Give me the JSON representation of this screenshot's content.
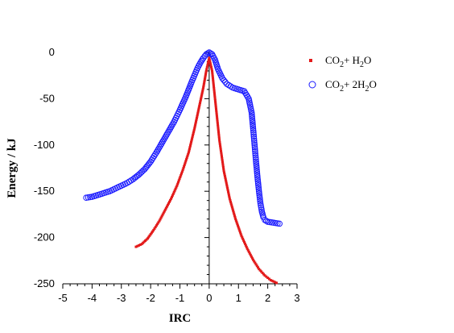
{
  "chart_data": {
    "type": "scatter",
    "xlabel": "IRC",
    "ylabel": "Energy / kJ",
    "xlim": [
      -5,
      3
    ],
    "ylim": [
      -250,
      0
    ],
    "xticks": [
      -5,
      -4,
      -3,
      -2,
      -1,
      0,
      1,
      2,
      3
    ],
    "yticks": [
      0,
      -50,
      -100,
      -150,
      -200,
      -250
    ],
    "grid": false,
    "legend_position": "top-right",
    "series": [
      {
        "name": "CO2 + H2O",
        "legend_parts": [
          "CO",
          "2",
          "+ H",
          "2",
          "O"
        ],
        "marker": "square",
        "color": "#e31a1a",
        "x": [
          -2.5,
          -2.3,
          -2.1,
          -1.9,
          -1.7,
          -1.5,
          -1.3,
          -1.1,
          -0.9,
          -0.7,
          -0.5,
          -0.35,
          -0.2,
          -0.1,
          0.0,
          0.1,
          0.2,
          0.35,
          0.5,
          0.7,
          0.9,
          1.1,
          1.3,
          1.5,
          1.7,
          1.9,
          2.1,
          2.3
        ],
        "y": [
          -210,
          -207,
          -201,
          -192,
          -182,
          -170,
          -158,
          -144,
          -127,
          -108,
          -82,
          -60,
          -38,
          -20,
          -6,
          -20,
          -50,
          -95,
          -128,
          -158,
          -180,
          -198,
          -212,
          -224,
          -234,
          -241,
          -246,
          -249
        ]
      },
      {
        "name": "CO2 + 2H2O",
        "legend_parts": [
          "CO",
          "2",
          "+ 2H",
          "2",
          "O"
        ],
        "marker": "circle-open",
        "color": "#1a1aff",
        "x": [
          -4.2,
          -4.0,
          -3.8,
          -3.6,
          -3.4,
          -3.2,
          -3.0,
          -2.8,
          -2.6,
          -2.4,
          -2.2,
          -2.0,
          -1.8,
          -1.6,
          -1.4,
          -1.2,
          -1.0,
          -0.8,
          -0.6,
          -0.4,
          -0.3,
          -0.2,
          -0.1,
          0.0,
          0.1,
          0.2,
          0.3,
          0.45,
          0.6,
          0.8,
          1.0,
          1.2,
          1.35,
          1.45,
          1.5,
          1.55,
          1.6,
          1.65,
          1.7,
          1.75,
          1.8,
          1.85,
          1.9,
          2.0,
          2.2,
          2.4
        ],
        "y": [
          -157,
          -156,
          -154,
          -152,
          -150,
          -147,
          -144,
          -141,
          -137,
          -132,
          -126,
          -118,
          -108,
          -97,
          -86,
          -75,
          -62,
          -48,
          -32,
          -17,
          -11,
          -6,
          -2,
          0,
          -2,
          -8,
          -18,
          -28,
          -34,
          -38,
          -40,
          -42,
          -50,
          -65,
          -82,
          -100,
          -118,
          -135,
          -150,
          -163,
          -172,
          -178,
          -181,
          -183,
          -184,
          -185
        ]
      }
    ]
  }
}
